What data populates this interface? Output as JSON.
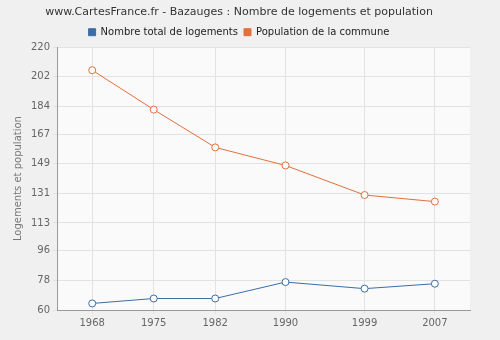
{
  "chart_data": {
    "type": "line",
    "title": "www.CartesFrance.fr - Bazauges : Nombre de logements et population",
    "y_label": "Logements et population",
    "x": [
      1968,
      1975,
      1982,
      1990,
      1999,
      2007
    ],
    "series": [
      {
        "name": "Nombre total de logements",
        "color": "#3a6ea5",
        "marker": "circle",
        "line_style": "solid",
        "values": [
          64,
          67,
          67,
          77,
          73,
          76
        ]
      },
      {
        "name": "Population de la commune",
        "color": "#e0703c",
        "marker": "circle",
        "line_style": "solid",
        "values": [
          206,
          182,
          159,
          148,
          130,
          126
        ]
      }
    ],
    "xlim": [
      1964,
      2011
    ],
    "xticks": [
      1968,
      1975,
      1982,
      1990,
      1999,
      2007
    ],
    "ylim": [
      60,
      220
    ],
    "yticks": [
      60,
      78,
      96,
      113,
      131,
      149,
      167,
      184,
      202,
      220
    ],
    "grid": true,
    "legend": "top"
  }
}
